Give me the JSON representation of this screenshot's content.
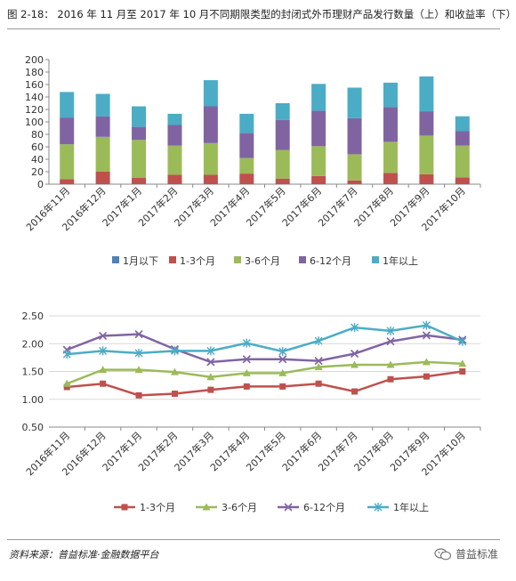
{
  "figure": {
    "title": "图 2-18： 2016 年 11 月至 2017 年 10 月不同期限类型的封闭式外币理财产品发行数量（上）和收益率（下）",
    "source": "资料来源：普益标准·金融数据平台",
    "watermark": "普益标准"
  },
  "colors": {
    "lt1m": "#4f81bd",
    "m1_3": "#c0504d",
    "m3_6": "#9bbb59",
    "m6_12": "#8064a2",
    "y1plus": "#4bacc6",
    "grid": "#d9d9d9",
    "axis": "#888888"
  },
  "chart_data": [
    {
      "type": "bar",
      "stacked": true,
      "title": "",
      "categories": [
        "2016年11月",
        "2016年12月",
        "2017年1月",
        "2017年2月",
        "2017年3月",
        "2017年4月",
        "2017年5月",
        "2017年6月",
        "2017年7月",
        "2017年8月",
        "2017年9月",
        "2017年10月"
      ],
      "ylim": [
        0,
        200
      ],
      "yticks": [
        0,
        20,
        40,
        60,
        80,
        100,
        120,
        140,
        160,
        180,
        200
      ],
      "grid": false,
      "legend_position": "bottom",
      "series": [
        {
          "name": "1月以下",
          "color_key": "lt1m",
          "values": [
            0,
            0,
            0,
            0,
            0,
            0,
            0,
            0,
            0,
            0,
            0,
            0
          ]
        },
        {
          "name": "1-3个月",
          "color_key": "m1_3",
          "values": [
            8,
            20,
            10,
            15,
            15,
            17,
            9,
            13,
            6,
            18,
            16,
            11
          ]
        },
        {
          "name": "3-6个月",
          "color_key": "m3_6",
          "values": [
            56,
            56,
            61,
            47,
            51,
            25,
            46,
            48,
            42,
            50,
            62,
            51
          ]
        },
        {
          "name": "6-12个月",
          "color_key": "m6_12",
          "values": [
            43,
            33,
            21,
            33,
            59,
            40,
            48,
            57,
            58,
            56,
            39,
            23
          ]
        },
        {
          "name": "1年以上",
          "color_key": "y1plus",
          "values": [
            41,
            36,
            33,
            18,
            42,
            31,
            27,
            43,
            49,
            39,
            56,
            24
          ]
        }
      ]
    },
    {
      "type": "line",
      "title": "",
      "categories": [
        "2016年11月",
        "2016年12月",
        "2017年1月",
        "2017年2月",
        "2017年3月",
        "2017年4月",
        "2017年5月",
        "2017年6月",
        "2017年7月",
        "2017年8月",
        "2017年9月",
        "2017年10月"
      ],
      "ylim": [
        0.5,
        2.5
      ],
      "yticks": [
        "0.50",
        "1.00",
        "1.50",
        "2.00",
        "2.50"
      ],
      "grid": true,
      "legend_position": "bottom",
      "series": [
        {
          "name": "1-3个月",
          "color_key": "m1_3",
          "marker": "square",
          "values": [
            1.22,
            1.28,
            1.07,
            1.1,
            1.17,
            1.23,
            1.23,
            1.28,
            1.14,
            1.36,
            1.41,
            1.5
          ]
        },
        {
          "name": "3-6个月",
          "color_key": "m3_6",
          "marker": "triangle",
          "values": [
            1.28,
            1.53,
            1.53,
            1.49,
            1.4,
            1.47,
            1.47,
            1.58,
            1.62,
            1.62,
            1.67,
            1.64
          ]
        },
        {
          "name": "6-12个月",
          "color_key": "m6_12",
          "marker": "x",
          "values": [
            1.89,
            2.14,
            2.17,
            1.9,
            1.67,
            1.72,
            1.72,
            1.69,
            1.82,
            2.04,
            2.15,
            2.07
          ]
        },
        {
          "name": "1年以上",
          "color_key": "y1plus",
          "marker": "star",
          "values": [
            1.81,
            1.87,
            1.83,
            1.87,
            1.87,
            2.01,
            1.86,
            2.05,
            2.29,
            2.23,
            2.33,
            2.04
          ]
        }
      ]
    }
  ]
}
